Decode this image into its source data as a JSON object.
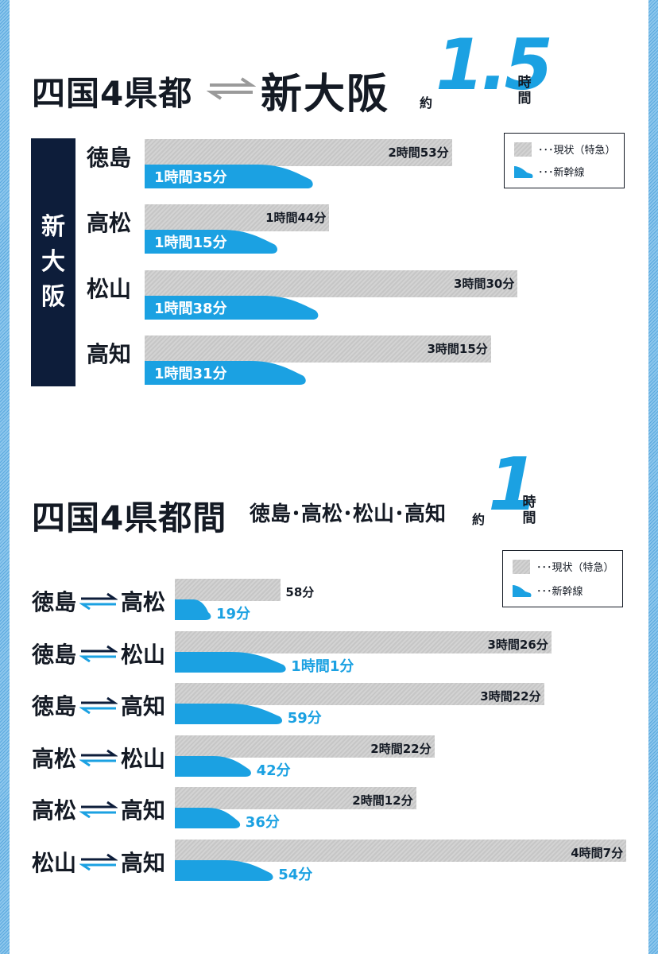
{
  "section1": {
    "title_left": "四国4県都",
    "title_right": "新大阪",
    "approx": "約",
    "big_value": "1.5",
    "unit_chars": [
      "時",
      "間"
    ],
    "side_label_chars": [
      "新",
      "大",
      "阪"
    ]
  },
  "section2": {
    "title": "四国4県都間",
    "subtitle": "徳島･高松･松山･高知",
    "approx": "約",
    "big_value": "1",
    "unit_chars": [
      "時",
      "間"
    ]
  },
  "legend": {
    "current": "･･･現状（特急）",
    "shinkansen": "･･･新幹線"
  },
  "colors": {
    "shinkansen": "#1ba1e2",
    "current": "#cccccc",
    "navy": "#0d1d3a"
  },
  "chart_data": [
    {
      "type": "bar",
      "title": "四国4県都 ⇌ 新大阪 約1.5時間",
      "categories": [
        "徳島",
        "高松",
        "松山",
        "高知"
      ],
      "series": [
        {
          "name": "現状（特急）",
          "values_min": [
            173,
            104,
            210,
            195
          ],
          "labels": [
            "2時間53分",
            "1時間44分",
            "3時間30分",
            "3時間15分"
          ]
        },
        {
          "name": "新幹線",
          "values_min": [
            95,
            75,
            98,
            91
          ],
          "labels": [
            "1時間35分",
            "1時間15分",
            "1時間38分",
            "1時間31分"
          ]
        }
      ]
    },
    {
      "type": "bar",
      "title": "四国4県都間 徳島･高松･松山･高知 約1時間",
      "categories": [
        {
          "from": "徳島",
          "to": "高松"
        },
        {
          "from": "徳島",
          "to": "松山"
        },
        {
          "from": "徳島",
          "to": "高知"
        },
        {
          "from": "高松",
          "to": "松山"
        },
        {
          "from": "高松",
          "to": "高知"
        },
        {
          "from": "松山",
          "to": "高知"
        }
      ],
      "series": [
        {
          "name": "現状（特急）",
          "values_min": [
            58,
            206,
            202,
            142,
            132,
            247
          ],
          "labels": [
            "58分",
            "3時間26分",
            "3時間22分",
            "2時間22分",
            "2時間12分",
            "4時間7分"
          ]
        },
        {
          "name": "新幹線",
          "values_min": [
            19,
            61,
            59,
            42,
            36,
            54
          ],
          "labels": [
            "19分",
            "1時間1分",
            "59分",
            "42分",
            "36分",
            "54分"
          ]
        }
      ]
    }
  ]
}
